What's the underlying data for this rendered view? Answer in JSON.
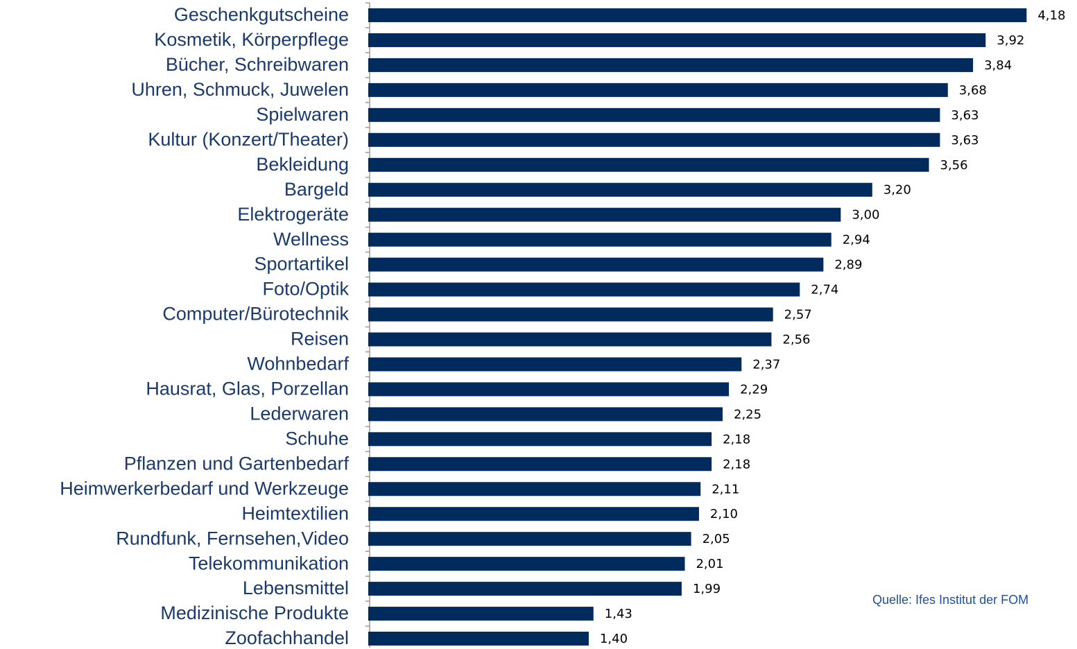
{
  "chart_data": {
    "type": "bar",
    "orientation": "horizontal",
    "categories": [
      "Geschenkgutscheine",
      "Kosmetik, Körperpflege",
      "Bücher, Schreibwaren",
      "Uhren, Schmuck, Juwelen",
      "Spielwaren",
      "Kultur (Konzert/Theater)",
      "Bekleidung",
      "Bargeld",
      "Elektrogeräte",
      "Wellness",
      "Sportartikel",
      "Foto/Optik",
      "Computer/Bürotechnik",
      "Reisen",
      "Wohnbedarf",
      "Hausrat, Glas, Porzellan",
      "Lederwaren",
      "Schuhe",
      "Pflanzen und Gartenbedarf",
      "Heimwerkerbedarf und Werkzeuge",
      "Heimtextilien",
      "Rundfunk, Fernsehen,Video",
      "Telekommunikation",
      "Lebensmittel",
      "Medizinische Produkte",
      "Zoofachhandel"
    ],
    "values": [
      4.18,
      3.92,
      3.84,
      3.68,
      3.63,
      3.63,
      3.56,
      3.2,
      3.0,
      2.94,
      2.89,
      2.74,
      2.57,
      2.56,
      2.37,
      2.29,
      2.25,
      2.18,
      2.18,
      2.11,
      2.1,
      2.05,
      2.01,
      1.99,
      1.43,
      1.4
    ],
    "value_labels": [
      "4,18",
      "3,92",
      "3,84",
      "3,68",
      "3,63",
      "3,63",
      "3,56",
      "3,20",
      "3,00",
      "2,94",
      "2,89",
      "2,74",
      "2,57",
      "2,56",
      "2,37",
      "2,29",
      "2,25",
      "2,18",
      "2,18",
      "2,11",
      "2,10",
      "2,05",
      "2,01",
      "1,99",
      "1,43",
      "1,40"
    ],
    "color": "#002b5c",
    "xlim": [
      0,
      4.5
    ],
    "annotation": "Quelle: Ifes Institut der FOM"
  }
}
